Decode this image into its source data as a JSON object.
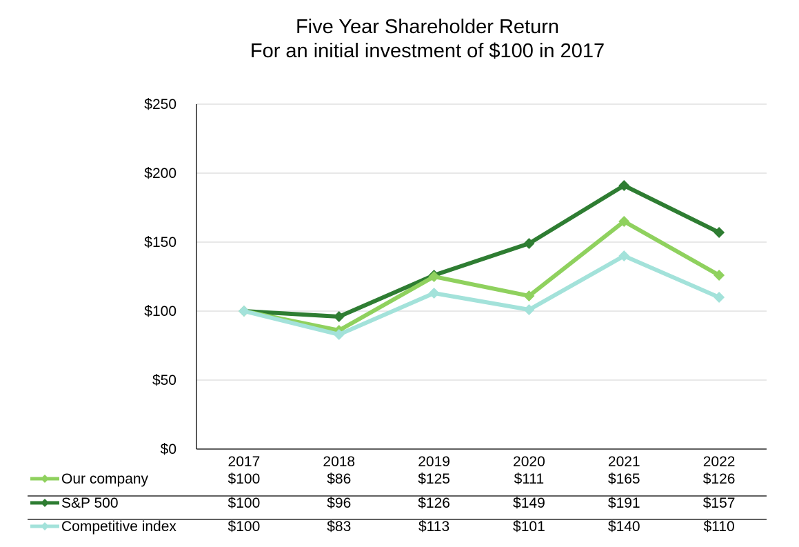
{
  "chart_data": {
    "type": "line",
    "title": "Five Year Shareholder Return",
    "subtitle": "For an initial investment of $100 in 2017",
    "categories": [
      "2017",
      "2018",
      "2019",
      "2020",
      "2021",
      "2022"
    ],
    "ylim": [
      0,
      250
    ],
    "yticks": [
      0,
      50,
      100,
      150,
      200,
      250
    ],
    "ytick_labels": [
      "$0",
      "$50",
      "$100",
      "$150",
      "$200",
      "$250"
    ],
    "grid": true,
    "legend": "bottom data table",
    "series": [
      {
        "name": "Our company",
        "color": "#8fd15e",
        "values": [
          100,
          86,
          125,
          111,
          165,
          126
        ],
        "labels": [
          "$100",
          "$86",
          "$125",
          "$111",
          "$165",
          "$126"
        ]
      },
      {
        "name": "S&P 500",
        "color": "#2e7d32",
        "values": [
          100,
          96,
          126,
          149,
          191,
          157
        ],
        "labels": [
          "$100",
          "$96",
          "$126",
          "$149",
          "$191",
          "$157"
        ]
      },
      {
        "name": "Competitive index",
        "color": "#a3e2da",
        "values": [
          100,
          83,
          113,
          101,
          140,
          110
        ],
        "labels": [
          "$100",
          "$83",
          "$113",
          "$101",
          "$140",
          "$110"
        ]
      }
    ]
  }
}
